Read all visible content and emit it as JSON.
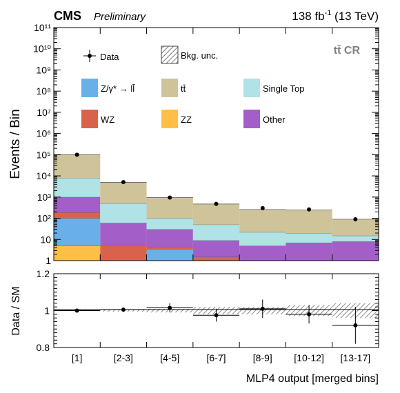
{
  "header": {
    "experiment": "CMS",
    "status": "Preliminary",
    "lumi": "138 fb",
    "lumi_sup": "-1",
    "energy": " (13 TeV)",
    "region": "tt̄ CR"
  },
  "chart_data": [
    {
      "type": "bar",
      "stacked": true,
      "ylabel": "Events / Bin",
      "yscale": "log",
      "ylim": [
        1,
        100000000000
      ],
      "y_tick_labels": [
        "1",
        "10",
        "10²",
        "10³",
        "10⁴",
        "10⁵",
        "10⁶",
        "10⁷",
        "10⁸",
        "10⁹",
        "10¹⁰",
        "10¹¹"
      ],
      "categories": [
        "[1]",
        "[2-3]",
        "[4-5]",
        "[6-7]",
        "[8-9]",
        "[10-12]",
        "[13-17]"
      ],
      "series": [
        {
          "name": "ZZ",
          "color": "#ffbf47",
          "values": [
            5,
            1,
            1,
            1,
            1,
            1,
            1
          ]
        },
        {
          "name": "Z/γ* → ll̄",
          "color": "#6ab0e8",
          "values": [
            100,
            1,
            3.5,
            1,
            1,
            1,
            1
          ]
        },
        {
          "name": "WZ",
          "color": "#d9634a",
          "values": [
            190,
            5.5,
            4.5,
            1.5,
            1,
            1,
            1
          ]
        },
        {
          "name": "Other",
          "color": "#a35fc7",
          "values": [
            1000,
            60,
            30,
            9,
            5,
            7,
            8
          ]
        },
        {
          "name": "Single Top",
          "color": "#b0e2e6",
          "values": [
            8000,
            500,
            100,
            50,
            22,
            20,
            15
          ]
        },
        {
          "name": "tt̄",
          "color": "#cfc39a",
          "values": [
            100000,
            5000,
            950,
            470,
            260,
            250,
            90
          ]
        }
      ],
      "data_series": {
        "name": "Data",
        "values": [
          100000,
          5100,
          950,
          480,
          300,
          260,
          90
        ]
      },
      "unc_label": "Bkg. unc."
    },
    {
      "type": "scatter",
      "ylabel": "Data / SM",
      "xlabel": "MLP4 output [merged bins]",
      "ylim": [
        0.8,
        1.2
      ],
      "y_tick_labels": [
        "0.8",
        "1",
        "1.2"
      ],
      "categories": [
        "[1]",
        "[2-3]",
        "[4-5]",
        "[6-7]",
        "[8-9]",
        "[10-12]",
        "[13-17]"
      ],
      "values": [
        1.0,
        1.005,
        1.015,
        0.975,
        1.01,
        0.98,
        0.92
      ],
      "errors": [
        0.005,
        0.01,
        0.025,
        0.035,
        0.05,
        0.05,
        0.1
      ],
      "unc": [
        0.003,
        0.005,
        0.01,
        0.02,
        0.02,
        0.03,
        0.04
      ]
    }
  ]
}
